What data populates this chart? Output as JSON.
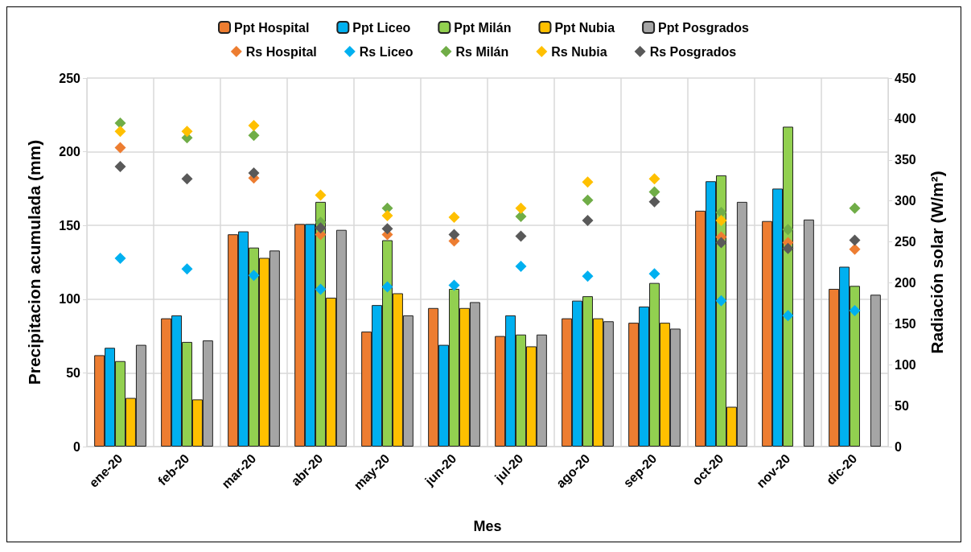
{
  "chart_data": {
    "type": "bar",
    "xlabel": "Mes",
    "ylabel": "Precipitacion acumulada (mm)",
    "y2label": "Radiación solar (W/m²)",
    "categories": [
      "ene-20",
      "feb-20",
      "mar-20",
      "abr-20",
      "may-20",
      "jun-20",
      "jul-20",
      "ago-20",
      "sep-20",
      "oct-20",
      "nov-20",
      "dic-20"
    ],
    "ylim": [
      0,
      250
    ],
    "yticks": [
      0,
      50,
      100,
      150,
      200,
      250
    ],
    "y2lim": [
      0,
      450
    ],
    "y2ticks": [
      0,
      50,
      100,
      150,
      200,
      250,
      300,
      350,
      400,
      450
    ],
    "grid": true,
    "legend": "top",
    "marker": "diamond",
    "series": [
      {
        "name": "Ppt Hospital",
        "color": "#ed7d31",
        "values": [
          62,
          87,
          144,
          151,
          78,
          94,
          75,
          87,
          84,
          160,
          153,
          107
        ]
      },
      {
        "name": "Ppt Liceo",
        "color": "#00b0f0",
        "values": [
          67,
          89,
          146,
          151,
          96,
          69,
          89,
          99,
          95,
          180,
          175,
          122
        ]
      },
      {
        "name": "Ppt Milán",
        "color": "#92d050",
        "values": [
          58,
          71,
          135,
          166,
          140,
          107,
          76,
          102,
          111,
          184,
          217,
          109
        ]
      },
      {
        "name": "Ppt Nubia",
        "color": "#ffc000",
        "values": [
          33,
          32,
          128,
          101,
          104,
          94,
          68,
          87,
          84,
          27,
          null,
          null
        ]
      },
      {
        "name": "Ppt Posgrados",
        "color": "#a5a5a5",
        "values": [
          69,
          72,
          133,
          147,
          89,
          98,
          76,
          85,
          80,
          166,
          154,
          103
        ]
      },
      {
        "name": "Rs Hospital",
        "type": "scatter",
        "axis": "y2",
        "color": "#ed7d31",
        "values": [
          365,
          null,
          328,
          259,
          259,
          251,
          null,
          null,
          null,
          256,
          249,
          241
        ]
      },
      {
        "name": "Rs Liceo",
        "type": "scatter",
        "axis": "y2",
        "color": "#00b0f0",
        "values": [
          230,
          217,
          209,
          192,
          195,
          197,
          220,
          208,
          211,
          178,
          160,
          166
        ]
      },
      {
        "name": "Rs Milán",
        "type": "scatter",
        "axis": "y2",
        "color": "#70ad47",
        "values": [
          395,
          377,
          380,
          274,
          291,
          null,
          281,
          301,
          311,
          286,
          265,
          291
        ]
      },
      {
        "name": "Rs Nubia",
        "type": "scatter",
        "axis": "y2",
        "color": "#ffc000",
        "values": [
          385,
          385,
          392,
          307,
          282,
          280,
          291,
          323,
          327,
          276,
          null,
          null
        ]
      },
      {
        "name": "Rs Posgrados",
        "type": "scatter",
        "axis": "y2",
        "color": "#595959",
        "values": [
          342,
          327,
          334,
          267,
          266,
          259,
          257,
          276,
          299,
          249,
          242,
          252
        ]
      }
    ]
  }
}
